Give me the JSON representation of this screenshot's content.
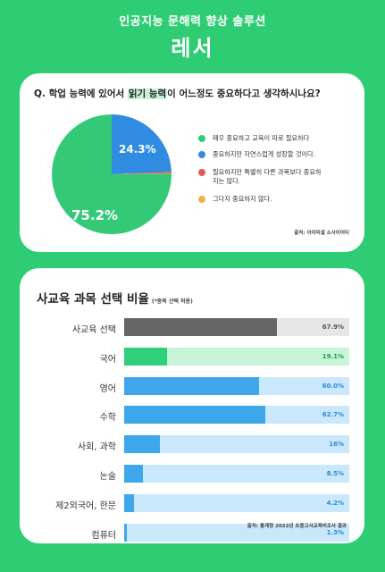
{
  "header": {
    "subtitle": "인공지능 문해력 향상 솔루션",
    "brand": "레서"
  },
  "survey": {
    "question_prefix": "Q. 학업 능력에 있어서 ",
    "question_highlight": "읽기 능력",
    "question_suffix": "이 어느정도 중요하다고 생각하시나요?",
    "source": "출처: 아이피셜 소사이어티",
    "label_large": "75.2%",
    "label_small": "24.3%",
    "legend": [
      {
        "label": "매우 중요하고 교육이 따로 필요하다",
        "color": "#34c977"
      },
      {
        "label": "중요하지만 자연스럽게 성장할 것이다.",
        "color": "#2f8ce0"
      },
      {
        "label": "필요하지만 특별히 다른 과목보다 중요하지는 않다.",
        "color": "#e05a5a"
      },
      {
        "label": "그다지 중요하지 않다.",
        "color": "#f2b04a"
      }
    ]
  },
  "chart_data": [
    {
      "type": "pie",
      "values": [
        75.2,
        24.3,
        0.4,
        0.1
      ],
      "labels": [
        "매우 중요하고 교육이 따로 필요하다",
        "중요하지만 자연스럽게 성장할 것이다.",
        "필요하지만 특별히 다른 과목보다 중요하지는 않다.",
        "그다지 중요하지 않다."
      ],
      "colors": [
        "#34c977",
        "#2f8ce0",
        "#e05a5a",
        "#f2b04a"
      ]
    },
    {
      "type": "bar",
      "orientation": "horizontal",
      "title": "사교육 과목 선택 비율",
      "note": "(*중복 선택 허용)",
      "categories": [
        "사교육 선택",
        "국어",
        "영어",
        "수학",
        "사회, 과학",
        "논술",
        "제2외국어, 한문",
        "컴퓨터"
      ],
      "values": [
        67.9,
        19.1,
        60.0,
        62.7,
        16,
        8.5,
        4.2,
        1.3
      ],
      "value_labels": [
        "67.9%",
        "19.1%",
        "60.0%",
        "62.7%",
        "16%",
        "8.5%",
        "4.2%",
        "1.3%"
      ],
      "xlim": [
        0,
        100
      ],
      "source": "출처: 통계청 2022년 초중고사교육비조사 결과"
    }
  ],
  "colors": {
    "background": "#2fcd73",
    "dark_fill": "#666666",
    "dark_track": "#e6e6e6",
    "dark_text": "#555555",
    "green_fill": "#2fd07b",
    "green_track": "#c8f5d8",
    "green_text": "#1f9c55",
    "blue_fill": "#3ea6ea",
    "blue_track": "#c9e8fb",
    "blue_text": "#2a8bd6"
  }
}
